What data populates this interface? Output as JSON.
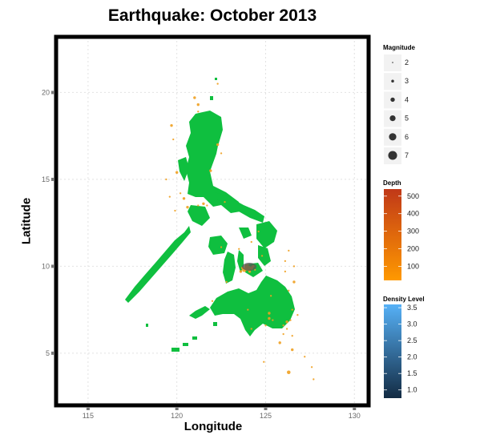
{
  "title": "Earthquake: October 2013",
  "chart_data": {
    "type": "map",
    "title": "Earthquake: October 2013",
    "xlabel": "Longitude",
    "ylabel": "Latitude",
    "xlim": [
      113.2,
      130.8
    ],
    "ylim": [
      2.0,
      23.2
    ],
    "x_ticks": [
      115,
      120,
      125,
      130
    ],
    "y_ticks": [
      5,
      10,
      15,
      20
    ],
    "grid": true,
    "land_color": "#0fbf3f",
    "point_color": "#f0a020",
    "points": [
      {
        "lon": 124.0,
        "lat": 9.9,
        "mag": 7
      },
      {
        "lon": 123.8,
        "lat": 9.8,
        "mag": 6
      },
      {
        "lon": 124.2,
        "lat": 9.9,
        "mag": 5
      },
      {
        "lon": 123.9,
        "lat": 10.0,
        "mag": 5
      },
      {
        "lon": 124.1,
        "lat": 9.7,
        "mag": 4
      },
      {
        "lon": 123.7,
        "lat": 9.9,
        "mag": 4
      },
      {
        "lon": 124.3,
        "lat": 10.0,
        "mag": 4
      },
      {
        "lon": 124.0,
        "lat": 10.1,
        "mag": 3
      },
      {
        "lon": 123.6,
        "lat": 9.7,
        "mag": 4
      },
      {
        "lon": 124.4,
        "lat": 9.8,
        "mag": 3
      },
      {
        "lon": 122.3,
        "lat": 20.5,
        "mag": 3
      },
      {
        "lon": 121.0,
        "lat": 19.7,
        "mag": 4
      },
      {
        "lon": 121.2,
        "lat": 19.3,
        "mag": 4
      },
      {
        "lon": 121.2,
        "lat": 18.9,
        "mag": 3
      },
      {
        "lon": 119.7,
        "lat": 18.1,
        "mag": 4
      },
      {
        "lon": 119.8,
        "lat": 17.3,
        "mag": 3
      },
      {
        "lon": 122.3,
        "lat": 17.0,
        "mag": 4
      },
      {
        "lon": 122.5,
        "lat": 16.5,
        "mag": 3
      },
      {
        "lon": 121.9,
        "lat": 15.5,
        "mag": 4
      },
      {
        "lon": 120.0,
        "lat": 15.4,
        "mag": 4
      },
      {
        "lon": 119.4,
        "lat": 15.0,
        "mag": 3
      },
      {
        "lon": 119.6,
        "lat": 14.0,
        "mag": 3
      },
      {
        "lon": 120.2,
        "lat": 14.2,
        "mag": 3
      },
      {
        "lon": 120.4,
        "lat": 13.9,
        "mag": 4
      },
      {
        "lon": 120.6,
        "lat": 13.4,
        "mag": 4
      },
      {
        "lon": 121.2,
        "lat": 13.5,
        "mag": 3
      },
      {
        "lon": 121.5,
        "lat": 13.6,
        "mag": 4
      },
      {
        "lon": 121.7,
        "lat": 13.5,
        "mag": 3
      },
      {
        "lon": 119.9,
        "lat": 13.2,
        "mag": 3
      },
      {
        "lon": 122.7,
        "lat": 13.7,
        "mag": 3
      },
      {
        "lon": 124.6,
        "lat": 12.0,
        "mag": 3
      },
      {
        "lon": 124.2,
        "lat": 11.4,
        "mag": 3
      },
      {
        "lon": 123.5,
        "lat": 11.0,
        "mag": 3
      },
      {
        "lon": 122.5,
        "lat": 11.1,
        "mag": 3
      },
      {
        "lon": 124.8,
        "lat": 10.6,
        "mag": 3
      },
      {
        "lon": 126.1,
        "lat": 10.3,
        "mag": 3
      },
      {
        "lon": 126.1,
        "lat": 9.7,
        "mag": 3
      },
      {
        "lon": 126.3,
        "lat": 10.9,
        "mag": 3
      },
      {
        "lon": 126.6,
        "lat": 10.0,
        "mag": 3
      },
      {
        "lon": 126.6,
        "lat": 9.1,
        "mag": 4
      },
      {
        "lon": 126.3,
        "lat": 8.6,
        "mag": 3
      },
      {
        "lon": 125.3,
        "lat": 8.3,
        "mag": 3
      },
      {
        "lon": 122.8,
        "lat": 9.1,
        "mag": 3
      },
      {
        "lon": 124.0,
        "lat": 7.5,
        "mag": 3
      },
      {
        "lon": 125.2,
        "lat": 7.3,
        "mag": 4
      },
      {
        "lon": 125.2,
        "lat": 7.0,
        "mag": 4
      },
      {
        "lon": 125.0,
        "lat": 6.6,
        "mag": 3
      },
      {
        "lon": 125.4,
        "lat": 6.9,
        "mag": 3
      },
      {
        "lon": 126.0,
        "lat": 6.6,
        "mag": 3
      },
      {
        "lon": 126.2,
        "lat": 6.8,
        "mag": 4
      },
      {
        "lon": 126.4,
        "lat": 6.9,
        "mag": 3
      },
      {
        "lon": 126.2,
        "lat": 6.4,
        "mag": 3
      },
      {
        "lon": 126.0,
        "lat": 6.1,
        "mag": 3
      },
      {
        "lon": 126.5,
        "lat": 6.0,
        "mag": 3
      },
      {
        "lon": 126.8,
        "lat": 7.2,
        "mag": 3
      },
      {
        "lon": 126.5,
        "lat": 7.5,
        "mag": 3
      },
      {
        "lon": 124.2,
        "lat": 6.4,
        "mag": 3
      },
      {
        "lon": 125.8,
        "lat": 5.6,
        "mag": 4
      },
      {
        "lon": 126.5,
        "lat": 5.2,
        "mag": 4
      },
      {
        "lon": 127.2,
        "lat": 4.8,
        "mag": 3
      },
      {
        "lon": 127.6,
        "lat": 4.2,
        "mag": 3
      },
      {
        "lon": 127.7,
        "lat": 3.5,
        "mag": 3
      },
      {
        "lon": 124.9,
        "lat": 4.5,
        "mag": 3
      },
      {
        "lon": 126.3,
        "lat": 3.9,
        "mag": 5
      },
      {
        "lon": 122.0,
        "lat": 8.0,
        "mag": 3
      }
    ],
    "legends": {
      "magnitude": {
        "title": "Magnitude",
        "values": [
          2,
          3,
          4,
          5,
          6,
          7
        ]
      },
      "depth": {
        "title": "Depth",
        "ticks": [
          100,
          200,
          300,
          400,
          500
        ],
        "range": [
          20,
          540
        ],
        "colors": [
          "#ff9900",
          "#c03818"
        ]
      },
      "density": {
        "title": "Density Level",
        "ticks": [
          1.0,
          1.5,
          2.0,
          2.5,
          3.0,
          3.5
        ],
        "range": [
          0.75,
          3.6
        ],
        "colors": [
          "#132b43",
          "#56b1f7"
        ]
      }
    }
  }
}
